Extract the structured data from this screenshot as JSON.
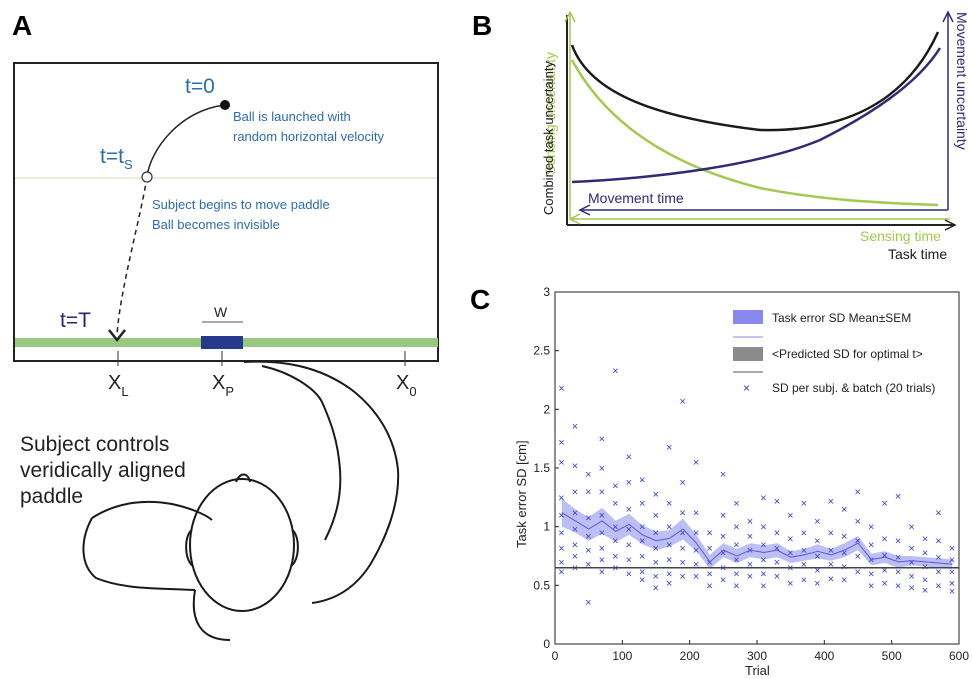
{
  "panels": {
    "a": "A",
    "b": "B",
    "c": "C"
  },
  "panel_a": {
    "t0": "t=0",
    "launch_line1": "Ball is launched with",
    "launch_line2": "random horizontal velocity",
    "ts_main": "t=t",
    "ts_sub": "S",
    "move_line1": "Subject begins to move paddle",
    "move_line2": "Ball becomes invisible",
    "tT": "t=T",
    "w": "W",
    "xl_main": "X",
    "xl_sub": "L",
    "xp_main": "X",
    "xp_sub": "P",
    "x0_main": "X",
    "x0_sub": "0",
    "subject_line1": "Subject controls",
    "subject_line2": "veridically aligned",
    "subject_line3": "paddle",
    "colors": {
      "blue_text": "#2d6cb3",
      "dark_blue": "#262673",
      "green": "#97c980",
      "paddle": "#253a8a"
    }
  },
  "panel_b": {
    "sensing_uncertainty": "Sensing uncertainty",
    "movement_uncertainty": "Movement uncertainty",
    "combined": "Combined task uncertainty",
    "movement_time": "Movement time",
    "sensing_time": "Sensing time",
    "task_time": "Task time",
    "colors": {
      "green": "#a3c94e",
      "navy": "#2f2a78",
      "black": "#1a1a1a"
    }
  },
  "chart_data": {
    "type": "scatter",
    "xlabel": "Trial",
    "ylabel": "Task error SD [cm]",
    "xlim": [
      0,
      600
    ],
    "ylim": [
      0,
      3
    ],
    "xticks": [
      "0",
      "100",
      "200",
      "300",
      "400",
      "500",
      "600"
    ],
    "yticks": [
      "0",
      "0.5",
      "1",
      "1.5",
      "2",
      "2.5",
      "3"
    ],
    "legend": [
      {
        "label": "Task error SD Mean±SEM",
        "color": "#8888ee"
      },
      {
        "label": "<Predicted SD for optimal t>",
        "color": "#8c8c8c"
      },
      {
        "label": "SD per subj. & batch (20 trials)",
        "color": "#2f3fd9"
      }
    ],
    "predicted_sd": 0.65,
    "mean": {
      "x": [
        10,
        30,
        50,
        70,
        90,
        110,
        130,
        150,
        170,
        190,
        210,
        230,
        250,
        270,
        290,
        310,
        330,
        350,
        370,
        390,
        410,
        430,
        450,
        470,
        490,
        510,
        530,
        550,
        570,
        590
      ],
      "y": [
        1.12,
        1.05,
        0.98,
        1.05,
        0.96,
        1.02,
        0.93,
        0.88,
        0.9,
        0.98,
        0.86,
        0.7,
        0.8,
        0.75,
        0.8,
        0.78,
        0.8,
        0.74,
        0.76,
        0.79,
        0.76,
        0.8,
        0.86,
        0.72,
        0.74,
        0.7,
        0.71,
        0.7,
        0.69,
        0.68
      ],
      "sem": [
        0.12,
        0.1,
        0.1,
        0.11,
        0.09,
        0.09,
        0.08,
        0.08,
        0.07,
        0.09,
        0.07,
        0.06,
        0.06,
        0.06,
        0.06,
        0.06,
        0.06,
        0.05,
        0.05,
        0.06,
        0.05,
        0.06,
        0.06,
        0.05,
        0.05,
        0.05,
        0.04,
        0.04,
        0.04,
        0.04
      ]
    },
    "points": [
      [
        10,
        2.18
      ],
      [
        10,
        1.72
      ],
      [
        10,
        1.55
      ],
      [
        10,
        1.25
      ],
      [
        10,
        1.1
      ],
      [
        10,
        0.95
      ],
      [
        10,
        0.82
      ],
      [
        10,
        0.7
      ],
      [
        10,
        0.62
      ],
      [
        30,
        1.86
      ],
      [
        30,
        1.52
      ],
      [
        30,
        1.3
      ],
      [
        30,
        1.12
      ],
      [
        30,
        0.98
      ],
      [
        30,
        0.85
      ],
      [
        30,
        0.75
      ],
      [
        30,
        0.65
      ],
      [
        50,
        1.45
      ],
      [
        50,
        1.3
      ],
      [
        50,
        1.08
      ],
      [
        50,
        0.92
      ],
      [
        50,
        0.8
      ],
      [
        50,
        0.68
      ],
      [
        50,
        0.36
      ],
      [
        70,
        1.75
      ],
      [
        70,
        1.5
      ],
      [
        70,
        1.3
      ],
      [
        70,
        1.1
      ],
      [
        70,
        0.95
      ],
      [
        70,
        0.82
      ],
      [
        70,
        0.72
      ],
      [
        70,
        0.62
      ],
      [
        90,
        2.33
      ],
      [
        90,
        1.35
      ],
      [
        90,
        1.2
      ],
      [
        90,
        1.0
      ],
      [
        90,
        0.88
      ],
      [
        90,
        0.75
      ],
      [
        90,
        0.65
      ],
      [
        110,
        1.6
      ],
      [
        110,
        1.38
      ],
      [
        110,
        1.15
      ],
      [
        110,
        0.98
      ],
      [
        110,
        0.85
      ],
      [
        110,
        0.72
      ],
      [
        110,
        0.6
      ],
      [
        130,
        1.4
      ],
      [
        130,
        1.2
      ],
      [
        130,
        1.0
      ],
      [
        130,
        0.88
      ],
      [
        130,
        0.75
      ],
      [
        130,
        0.62
      ],
      [
        130,
        0.55
      ],
      [
        150,
        1.28
      ],
      [
        150,
        1.1
      ],
      [
        150,
        0.95
      ],
      [
        150,
        0.82
      ],
      [
        150,
        0.7
      ],
      [
        150,
        0.58
      ],
      [
        150,
        0.48
      ],
      [
        170,
        1.68
      ],
      [
        170,
        1.2
      ],
      [
        170,
        1.0
      ],
      [
        170,
        0.85
      ],
      [
        170,
        0.72
      ],
      [
        170,
        0.6
      ],
      [
        170,
        0.52
      ],
      [
        190,
        2.07
      ],
      [
        190,
        1.38
      ],
      [
        190,
        1.12
      ],
      [
        190,
        0.95
      ],
      [
        190,
        0.82
      ],
      [
        190,
        0.7
      ],
      [
        190,
        0.58
      ],
      [
        210,
        1.55
      ],
      [
        210,
        1.12
      ],
      [
        210,
        0.95
      ],
      [
        210,
        0.8
      ],
      [
        210,
        0.68
      ],
      [
        210,
        0.58
      ],
      [
        230,
        0.95
      ],
      [
        230,
        0.82
      ],
      [
        230,
        0.7
      ],
      [
        230,
        0.6
      ],
      [
        230,
        0.5
      ],
      [
        250,
        1.45
      ],
      [
        250,
        1.1
      ],
      [
        250,
        0.92
      ],
      [
        250,
        0.78
      ],
      [
        250,
        0.65
      ],
      [
        250,
        0.55
      ],
      [
        270,
        1.2
      ],
      [
        270,
        1.0
      ],
      [
        270,
        0.85
      ],
      [
        270,
        0.72
      ],
      [
        270,
        0.6
      ],
      [
        270,
        0.5
      ],
      [
        290,
        1.05
      ],
      [
        290,
        0.92
      ],
      [
        290,
        0.8
      ],
      [
        290,
        0.68
      ],
      [
        290,
        0.58
      ],
      [
        310,
        1.25
      ],
      [
        310,
        1.0
      ],
      [
        310,
        0.85
      ],
      [
        310,
        0.72
      ],
      [
        310,
        0.6
      ],
      [
        310,
        0.5
      ],
      [
        330,
        1.22
      ],
      [
        330,
        0.95
      ],
      [
        330,
        0.82
      ],
      [
        330,
        0.7
      ],
      [
        330,
        0.58
      ],
      [
        350,
        1.1
      ],
      [
        350,
        0.9
      ],
      [
        350,
        0.78
      ],
      [
        350,
        0.65
      ],
      [
        350,
        0.52
      ],
      [
        370,
        1.2
      ],
      [
        370,
        0.95
      ],
      [
        370,
        0.8
      ],
      [
        370,
        0.68
      ],
      [
        370,
        0.55
      ],
      [
        390,
        1.05
      ],
      [
        390,
        0.88
      ],
      [
        390,
        0.75
      ],
      [
        390,
        0.63
      ],
      [
        390,
        0.52
      ],
      [
        410,
        1.22
      ],
      [
        410,
        0.95
      ],
      [
        410,
        0.8
      ],
      [
        410,
        0.68
      ],
      [
        410,
        0.56
      ],
      [
        430,
        1.15
      ],
      [
        430,
        0.92
      ],
      [
        430,
        0.78
      ],
      [
        430,
        0.66
      ],
      [
        430,
        0.55
      ],
      [
        450,
        1.3
      ],
      [
        450,
        1.05
      ],
      [
        450,
        0.88
      ],
      [
        450,
        0.75
      ],
      [
        450,
        0.62
      ],
      [
        470,
        1.0
      ],
      [
        470,
        0.85
      ],
      [
        470,
        0.72
      ],
      [
        470,
        0.6
      ],
      [
        470,
        0.5
      ],
      [
        490,
        1.2
      ],
      [
        490,
        0.9
      ],
      [
        490,
        0.76
      ],
      [
        490,
        0.63
      ],
      [
        490,
        0.52
      ],
      [
        510,
        1.26
      ],
      [
        510,
        0.88
      ],
      [
        510,
        0.74
      ],
      [
        510,
        0.62
      ],
      [
        510,
        0.5
      ],
      [
        530,
        1.0
      ],
      [
        530,
        0.82
      ],
      [
        530,
        0.7
      ],
      [
        530,
        0.58
      ],
      [
        530,
        0.48
      ],
      [
        550,
        0.9
      ],
      [
        550,
        0.78
      ],
      [
        550,
        0.66
      ],
      [
        550,
        0.55
      ],
      [
        550,
        0.46
      ],
      [
        570,
        1.12
      ],
      [
        570,
        0.88
      ],
      [
        570,
        0.74
      ],
      [
        570,
        0.62
      ],
      [
        570,
        0.5
      ],
      [
        590,
        0.82
      ],
      [
        590,
        0.72
      ],
      [
        590,
        0.62
      ],
      [
        590,
        0.52
      ],
      [
        590,
        0.45
      ]
    ]
  }
}
